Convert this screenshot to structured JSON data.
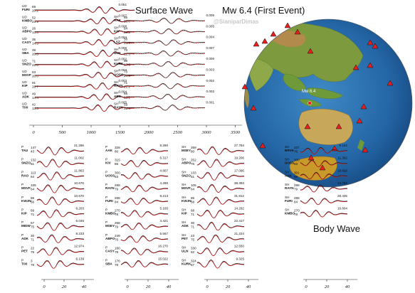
{
  "figure": {
    "surface_title": "Surface Wave",
    "event_title": "Mw 6.4 (First Event)",
    "credit": "@SianiparDimas",
    "body_title": "Body Wave",
    "map_label": "Mw 6.4",
    "trace_colors": {
      "observed": "#111111",
      "synthetic": "#d42020"
    },
    "station_marker": "red-triangle",
    "epicenter_marker": "red-dot"
  },
  "surface_axis": {
    "ticks": [
      "0",
      "500",
      "1000",
      "1500",
      "2000",
      "2500",
      "3000",
      "3500"
    ]
  },
  "body_axis": {
    "ticks": [
      "0",
      "20",
      "40"
    ]
  },
  "surface_wave": {
    "left": [
      {
        "comp": "UD",
        "station": "FURI",
        "v1": "69",
        "v2": "20.2",
        "value": "0.051"
      },
      {
        "comp": "UD",
        "station": "KMBO",
        "v1": "52",
        "v2": "23.9",
        "value": "0.007"
      },
      {
        "comp": "UD",
        "station": "ABPO",
        "v1": "26",
        "v2": "13.6",
        "value": "0.008"
      },
      {
        "comp": "UD",
        "station": "CASY",
        "v1": "35",
        "v2": "14.5",
        "value": "0.004"
      },
      {
        "comp": "UD",
        "station": "SBA",
        "v1": "39",
        "v2": "20.8",
        "value": "0.006"
      },
      {
        "comp": "UD",
        "station": "SNZO",
        "v1": "71",
        "v2": "22.0",
        "value": "0.002"
      },
      {
        "comp": "UD",
        "station": "MSVF",
        "v1": "63",
        "v2": "20.0",
        "value": "0.003"
      },
      {
        "comp": "UD",
        "station": "KIP",
        "v1": "91",
        "v2": "28.7",
        "value": "0.003"
      },
      {
        "comp": "UD",
        "station": "ADK",
        "v1": "49",
        "v2": "14.4",
        "value": "0.004"
      },
      {
        "comp": "UD",
        "station": "TIXI",
        "v1": "42",
        "v2": "13.3",
        "value": "0.005"
      }
    ],
    "right": [
      {
        "comp": "SH",
        "station": "AAK",
        "v1": "65",
        "v2": "28.0",
        "value": "0.005"
      },
      {
        "comp": "SH",
        "station": "KIV",
        "v1": "64",
        "v2": "30.2",
        "value": "0.005"
      },
      {
        "comp": "SH",
        "station": "LSZ",
        "v1": "56",
        "v2": "23.7",
        "value": "0.004"
      },
      {
        "comp": "SH",
        "station": "ULN",
        "v1": "73",
        "v2": "22.3",
        "value": "0.007"
      },
      {
        "comp": "SH",
        "station": "KURK",
        "v1": "56",
        "v2": "17.6",
        "value": "0.006"
      },
      {
        "comp": "SH",
        "station": "UOSS",
        "v1": "73",
        "v2": "20.3",
        "value": "0.003"
      },
      {
        "comp": "SH",
        "station": "RAYN",
        "v1": "71",
        "v2": "21.2",
        "value": "0.002"
      },
      {
        "comp": "SH",
        "station": "ADK",
        "v1": "66",
        "v2": "22.1",
        "value": "0.002"
      },
      {
        "comp": "SH",
        "station": "RAYN",
        "v1": "59",
        "v2": "22.4",
        "value": "0.001"
      }
    ]
  },
  "body_wave": {
    "col1": [
      {
        "comp": "P",
        "station": "TAU",
        "v1": "147",
        "v2": "43",
        "value": "21.286"
      },
      {
        "comp": "P",
        "station": "SNZO",
        "v1": "132",
        "v2": "51",
        "value": "11.002"
      },
      {
        "comp": "P",
        "station": "RAO",
        "v1": "113",
        "v2": "64",
        "value": "11.863"
      },
      {
        "comp": "P",
        "station": "MSVF",
        "v1": "335",
        "v2": "64",
        "value": "10.676"
      },
      {
        "comp": "P",
        "station": "KWJN",
        "v1": "66",
        "v2": "56",
        "value": "10.670"
      },
      {
        "comp": "P",
        "station": "KIP",
        "v1": "69",
        "v2": "71",
        "value": "8.203"
      },
      {
        "comp": "P",
        "station": "MIDW",
        "v1": "57",
        "v2": "75",
        "value": "6.045"
      },
      {
        "comp": "P",
        "station": "ADK",
        "v1": "30",
        "v2": "71",
        "value": "8.233"
      },
      {
        "comp": "P",
        "station": "PET",
        "v1": "22",
        "v2": "75",
        "value": "12.974"
      },
      {
        "comp": "P",
        "station": "TIXI",
        "v1": "3",
        "v2": "76",
        "value": "6.139"
      }
    ],
    "col2": [
      {
        "comp": "P",
        "station": "AAK",
        "v1": "328",
        "v2": "80",
        "value": "8.290"
      },
      {
        "comp": "P",
        "station": "KIV",
        "v1": "315",
        "v2": "86",
        "value": "6.317"
      },
      {
        "comp": "P",
        "station": "UOSS",
        "v1": "300",
        "v2": "83",
        "value": "4.807"
      },
      {
        "comp": "P",
        "station": "RAYN",
        "v1": "298",
        "v2": "79",
        "value": "4.290"
      },
      {
        "comp": "P",
        "station": "FURI",
        "v1": "288",
        "v2": "84",
        "value": "8.213"
      },
      {
        "comp": "P",
        "station": "KMBO",
        "v1": "270",
        "v2": "78",
        "value": "5.165"
      },
      {
        "comp": "P",
        "station": "MSEY",
        "v1": "268",
        "v2": "79",
        "value": "4.421"
      },
      {
        "comp": "P",
        "station": "ABPO",
        "v1": "249",
        "v2": "76",
        "value": "5.567"
      },
      {
        "comp": "P",
        "station": "CASY",
        "v1": "180",
        "v2": "78",
        "value": "16.270"
      },
      {
        "comp": "P",
        "station": "SBA",
        "v1": "176",
        "v2": "78",
        "value": "15.022"
      }
    ],
    "col3": [
      {
        "comp": "SH",
        "station": "MSEY",
        "v1": "269",
        "v2": "80",
        "value": "27.784"
      },
      {
        "comp": "SH",
        "station": "ABPO",
        "v1": "252",
        "v2": "76",
        "value": "19.206"
      },
      {
        "comp": "SH",
        "station": "SNZO",
        "v1": "133",
        "v2": "51",
        "value": "17.096"
      },
      {
        "comp": "SH",
        "station": "MSVF",
        "v1": "105",
        "v2": "64",
        "value": "38.393"
      },
      {
        "comp": "SH",
        "station": "KWJN",
        "v1": "66",
        "v2": "58",
        "value": "31.912"
      },
      {
        "comp": "SH",
        "station": "KIP",
        "v1": "68",
        "v2": "71",
        "value": "14.292"
      },
      {
        "comp": "SH",
        "station": "ADK",
        "v1": "30",
        "v2": "71",
        "value": "22.417"
      },
      {
        "comp": "SH",
        "station": "PET",
        "v1": "23",
        "v2": "75",
        "value": "21.224"
      },
      {
        "comp": "SH",
        "station": "ULN",
        "v1": "330",
        "v2": "52",
        "value": "12.550"
      },
      {
        "comp": "SH",
        "station": "KURK",
        "v1": "324",
        "v2": "67",
        "value": "9.325"
      }
    ],
    "col4": [
      {
        "comp": "SH",
        "station": "BRVK",
        "v1": "337",
        "v2": "76",
        "value": "9.152"
      },
      {
        "comp": "SH",
        "station": "UOSS",
        "v1": "300",
        "v2": "83",
        "value": "11.362"
      },
      {
        "comp": "SH",
        "station": "AAK",
        "v1": "301",
        "v2": "66",
        "value": "18.692"
      },
      {
        "comp": "SH",
        "station": "RAYN",
        "v1": "298",
        "v2": "79",
        "value": "13.752"
      },
      {
        "comp": "SH",
        "station": "FURI",
        "v1": "288",
        "v2": "84",
        "value": "28.435"
      },
      {
        "comp": "SH",
        "station": "KMBO",
        "v1": "270",
        "v2": "78",
        "value": "16.804"
      }
    ]
  }
}
